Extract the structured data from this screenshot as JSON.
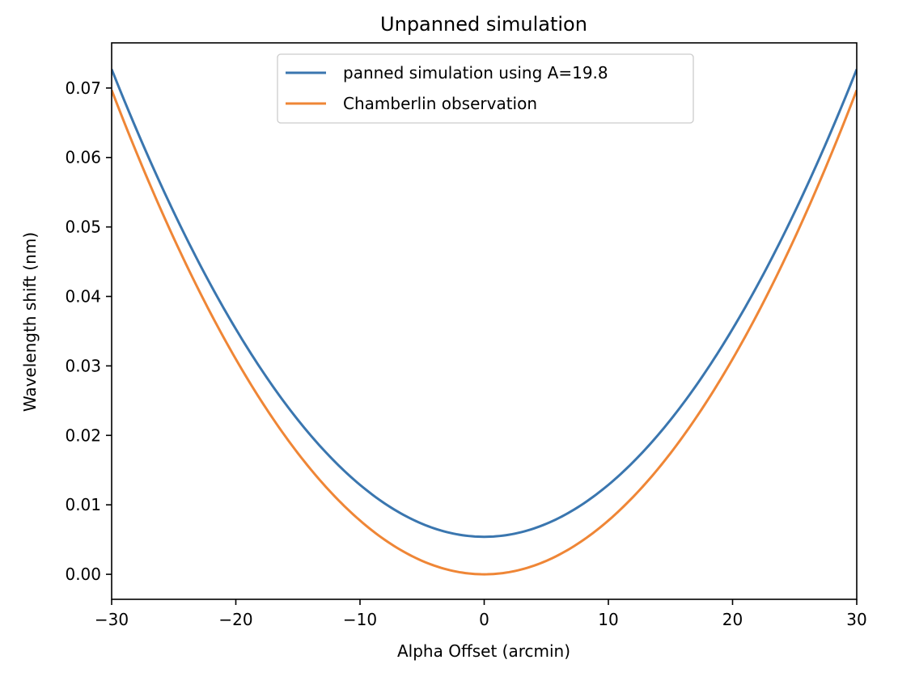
{
  "chart_data": {
    "type": "line",
    "title": "Unpanned simulation",
    "xlabel": "Alpha Offset (arcmin)",
    "ylabel": "Wavelength shift (nm)",
    "xlim": [
      -30,
      30
    ],
    "ylim": [
      -0.0036,
      0.0765
    ],
    "xticks": [
      -30,
      -20,
      -10,
      0,
      10,
      20,
      30
    ],
    "xtick_labels": [
      "−30",
      "−20",
      "−10",
      "0",
      "10",
      "20",
      "30"
    ],
    "yticks": [
      0.0,
      0.01,
      0.02,
      0.03,
      0.04,
      0.05,
      0.06,
      0.07
    ],
    "ytick_labels": [
      "0.00",
      "0.01",
      "0.02",
      "0.03",
      "0.04",
      "0.05",
      "0.06",
      "0.07"
    ],
    "grid": false,
    "legend_position": "top-center",
    "series": [
      {
        "name": "panned simulation using A=19.8",
        "color": "#3a76af",
        "x": [
          -30,
          -25,
          -20,
          -15,
          -10,
          -5,
          0,
          5,
          10,
          15,
          20,
          25,
          30
        ],
        "y": [
          0.0727,
          0.0518,
          0.0348,
          0.0215,
          0.0122,
          0.0069,
          0.0054,
          0.0069,
          0.0122,
          0.0215,
          0.0348,
          0.0518,
          0.0727
        ]
      },
      {
        "name": "Chamberlin observation",
        "color": "#ef8636",
        "x": [
          -30,
          -25,
          -20,
          -15,
          -10,
          -5,
          0,
          5,
          10,
          15,
          20,
          25,
          30
        ],
        "y": [
          0.0697,
          0.0484,
          0.031,
          0.0175,
          0.0078,
          0.002,
          0.0,
          0.002,
          0.0078,
          0.0175,
          0.031,
          0.0484,
          0.0697
        ]
      }
    ]
  }
}
